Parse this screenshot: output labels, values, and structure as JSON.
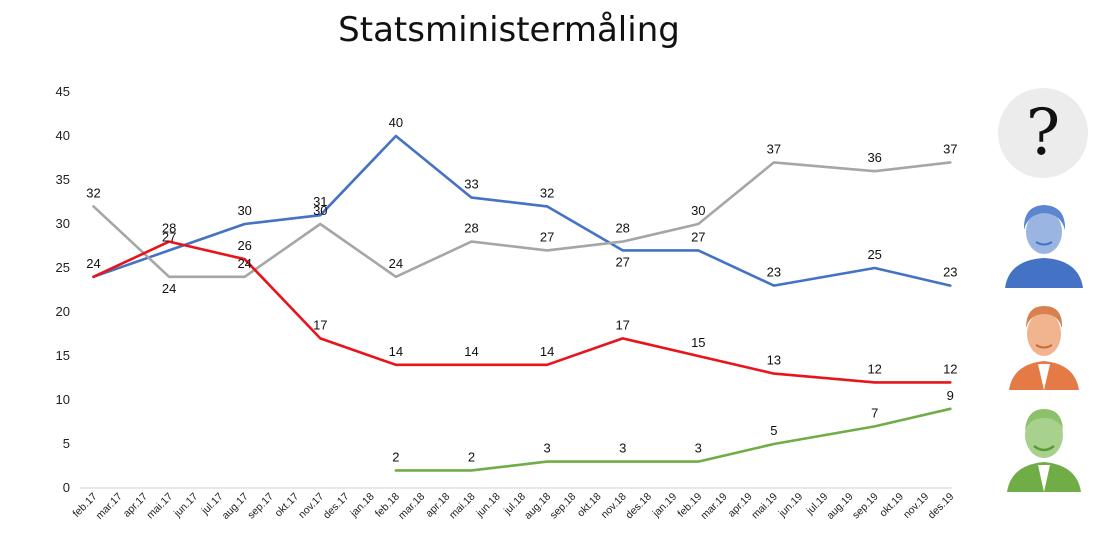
{
  "chart_data": {
    "type": "line",
    "title": "Statsministermåling",
    "xlabel": "",
    "ylabel": "",
    "ylim": [
      0,
      45
    ],
    "yticks": [
      0,
      5,
      10,
      15,
      20,
      25,
      30,
      35,
      40,
      45
    ],
    "grid": false,
    "categories": [
      "feb.17",
      "mar.17",
      "apr.17",
      "mai.17",
      "jun.17",
      "jul.17",
      "aug.17",
      "sep.17",
      "okt.17",
      "nov.17",
      "des.17",
      "jan.18",
      "feb.18",
      "mar.18",
      "apr.18",
      "mai.18",
      "jun.18",
      "jul.18",
      "aug.18",
      "sep.18",
      "okt.18",
      "nov.18",
      "des.18",
      "jan.19",
      "feb.19",
      "mar.19",
      "apr.19",
      "mai.19",
      "jun.19",
      "jul.19",
      "aug.19",
      "sep.19",
      "okt.19",
      "nov.19",
      "des.19"
    ],
    "series": [
      {
        "name": "blue",
        "color": "#4472c4",
        "points": [
          [
            0,
            24
          ],
          [
            3,
            27
          ],
          [
            6,
            30
          ],
          [
            9,
            31
          ],
          [
            12,
            40
          ],
          [
            15,
            33
          ],
          [
            18,
            32
          ],
          [
            21,
            27
          ],
          [
            24,
            27
          ],
          [
            27,
            23
          ],
          [
            31,
            25
          ],
          [
            34,
            23
          ]
        ]
      },
      {
        "name": "grey",
        "color": "#a6a6a6",
        "points": [
          [
            0,
            32
          ],
          [
            3,
            24
          ],
          [
            6,
            24
          ],
          [
            9,
            30
          ],
          [
            12,
            24
          ],
          [
            15,
            28
          ],
          [
            18,
            27
          ],
          [
            21,
            28
          ],
          [
            24,
            30
          ],
          [
            27,
            37
          ],
          [
            31,
            36
          ],
          [
            34,
            37
          ]
        ]
      },
      {
        "name": "red",
        "color": "#e8131b",
        "points": [
          [
            0,
            24
          ],
          [
            3,
            28
          ],
          [
            6,
            26
          ],
          [
            9,
            17
          ],
          [
            12,
            14
          ],
          [
            15,
            14
          ],
          [
            18,
            14
          ],
          [
            21,
            17
          ],
          [
            24,
            15
          ],
          [
            27,
            13
          ],
          [
            31,
            12
          ],
          [
            34,
            12
          ]
        ]
      },
      {
        "name": "green",
        "color": "#70ad47",
        "points": [
          [
            12,
            2
          ],
          [
            15,
            2
          ],
          [
            18,
            3
          ],
          [
            21,
            3
          ],
          [
            24,
            3
          ],
          [
            27,
            5
          ],
          [
            31,
            7
          ],
          [
            34,
            9
          ]
        ]
      }
    ],
    "data_labels": [
      {
        "i": 0,
        "v": 24,
        "text": "24",
        "pos": "above"
      },
      {
        "i": 0,
        "v": 32,
        "text": "32",
        "pos": "above"
      },
      {
        "i": 3,
        "v": 28,
        "text": "28",
        "pos": "above"
      },
      {
        "i": 3,
        "v": 27,
        "text": "27",
        "pos": "above"
      },
      {
        "i": 3,
        "v": 24,
        "text": "24",
        "pos": "below"
      },
      {
        "i": 6,
        "v": 30,
        "text": "30",
        "pos": "above"
      },
      {
        "i": 6,
        "v": 26,
        "text": "26",
        "pos": "above"
      },
      {
        "i": 6,
        "v": 24,
        "text": "24",
        "pos": "above"
      },
      {
        "i": 9,
        "v": 31,
        "text": "31",
        "pos": "above"
      },
      {
        "i": 9,
        "v": 30,
        "text": "30",
        "pos": "above"
      },
      {
        "i": 9,
        "v": 17,
        "text": "17",
        "pos": "above"
      },
      {
        "i": 12,
        "v": 40,
        "text": "40",
        "pos": "above"
      },
      {
        "i": 12,
        "v": 24,
        "text": "24",
        "pos": "above"
      },
      {
        "i": 12,
        "v": 14,
        "text": "14",
        "pos": "above"
      },
      {
        "i": 12,
        "v": 2,
        "text": "2",
        "pos": "above"
      },
      {
        "i": 15,
        "v": 33,
        "text": "33",
        "pos": "above"
      },
      {
        "i": 15,
        "v": 28,
        "text": "28",
        "pos": "above"
      },
      {
        "i": 15,
        "v": 14,
        "text": "14",
        "pos": "above"
      },
      {
        "i": 15,
        "v": 2,
        "text": "2",
        "pos": "above"
      },
      {
        "i": 18,
        "v": 32,
        "text": "32",
        "pos": "above"
      },
      {
        "i": 18,
        "v": 27,
        "text": "27",
        "pos": "above"
      },
      {
        "i": 18,
        "v": 14,
        "text": "14",
        "pos": "above"
      },
      {
        "i": 18,
        "v": 3,
        "text": "3",
        "pos": "above"
      },
      {
        "i": 21,
        "v": 28,
        "text": "28",
        "pos": "above"
      },
      {
        "i": 21,
        "v": 27,
        "text": "27",
        "pos": "below"
      },
      {
        "i": 21,
        "v": 17,
        "text": "17",
        "pos": "above"
      },
      {
        "i": 21,
        "v": 3,
        "text": "3",
        "pos": "above"
      },
      {
        "i": 24,
        "v": 30,
        "text": "30",
        "pos": "above"
      },
      {
        "i": 24,
        "v": 27,
        "text": "27",
        "pos": "above"
      },
      {
        "i": 24,
        "v": 15,
        "text": "15",
        "pos": "above"
      },
      {
        "i": 24,
        "v": 3,
        "text": "3",
        "pos": "above"
      },
      {
        "i": 27,
        "v": 37,
        "text": "37",
        "pos": "above"
      },
      {
        "i": 27,
        "v": 23,
        "text": "23",
        "pos": "above"
      },
      {
        "i": 27,
        "v": 13,
        "text": "13",
        "pos": "above"
      },
      {
        "i": 27,
        "v": 5,
        "text": "5",
        "pos": "above"
      },
      {
        "i": 31,
        "v": 36,
        "text": "36",
        "pos": "above"
      },
      {
        "i": 31,
        "v": 25,
        "text": "25",
        "pos": "above"
      },
      {
        "i": 31,
        "v": 12,
        "text": "12",
        "pos": "above"
      },
      {
        "i": 31,
        "v": 7,
        "text": "7",
        "pos": "above"
      },
      {
        "i": 34,
        "v": 37,
        "text": "37",
        "pos": "above"
      },
      {
        "i": 34,
        "v": 23,
        "text": "23",
        "pos": "above"
      },
      {
        "i": 34,
        "v": 12,
        "text": "12",
        "pos": "above"
      },
      {
        "i": 34,
        "v": 9,
        "text": "9",
        "pos": "above"
      }
    ],
    "legend": {
      "placement": "right",
      "question_mark": "?",
      "entries": [
        {
          "series": "grey",
          "icon": "question-mark-circle"
        },
        {
          "series": "blue",
          "icon": "portrait-blue"
        },
        {
          "series": "red",
          "icon": "portrait-red"
        },
        {
          "series": "green",
          "icon": "portrait-green"
        }
      ]
    }
  }
}
